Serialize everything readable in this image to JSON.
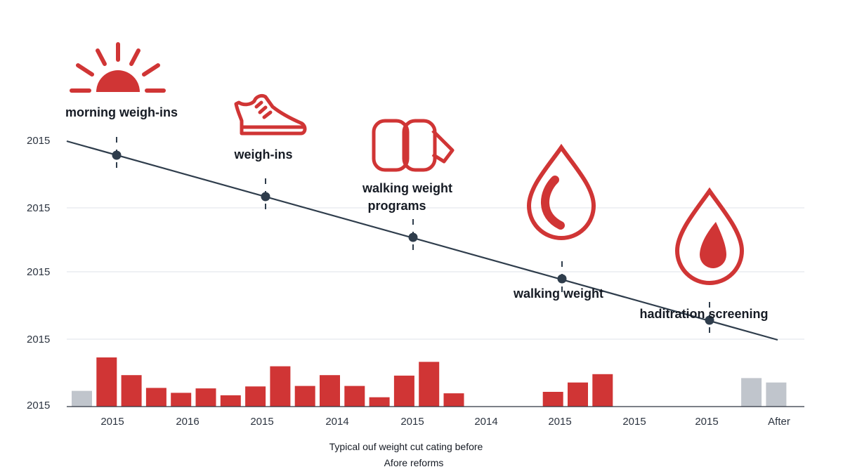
{
  "chart_data": {
    "type": "bar+line",
    "title": "",
    "y_tick_labels": [
      "2015",
      "2015",
      "2015",
      "2015",
      "2015"
    ],
    "x_tick_labels": [
      "2015",
      "2016",
      "2015",
      "2014",
      "2015",
      "2014",
      "2015",
      "2015",
      "2015",
      "After"
    ],
    "caption": [
      "Typical ouf weight cut cating before",
      "Afore reforms"
    ],
    "grid": true,
    "bars": {
      "ylim": [
        0,
        100
      ],
      "values": [
        32,
        100,
        64,
        38,
        28,
        37,
        23,
        41,
        82,
        42,
        64,
        42,
        19,
        63,
        91,
        27,
        0,
        0,
        0,
        30,
        49,
        66,
        0,
        0,
        0,
        0,
        0,
        58,
        49
      ],
      "colors": [
        "#c0c5cc",
        "#d03535",
        "#d03535",
        "#d03535",
        "#d03535",
        "#d03535",
        "#d03535",
        "#d03535",
        "#d03535",
        "#d03535",
        "#d03535",
        "#d03535",
        "#d03535",
        "#d03535",
        "#d03535",
        "#d03535",
        "#d03535",
        "#d03535",
        "#d03535",
        "#d03535",
        "#d03535",
        "#d03535",
        "#d03535",
        "#d03535",
        "#d03535",
        "#d03535",
        "#d03535",
        "#c0c5cc",
        "#c0c5cc"
      ]
    },
    "milestones": [
      {
        "label": "morning weigh-ins",
        "icon": "sun-icon"
      },
      {
        "label": "weigh-ins",
        "icon": "shoe-icon"
      },
      {
        "label": "walking weight programs",
        "icon": "scale-pads-icon"
      },
      {
        "label": "walking weight",
        "icon": "drop-outline-icon"
      },
      {
        "label": "haditration screening",
        "icon": "drop-filled-icon"
      }
    ],
    "colors": {
      "accent": "#d03535",
      "neutral": "#c0c5cc",
      "line": "#2f3d4c",
      "grid": "#dfe3e8"
    }
  }
}
